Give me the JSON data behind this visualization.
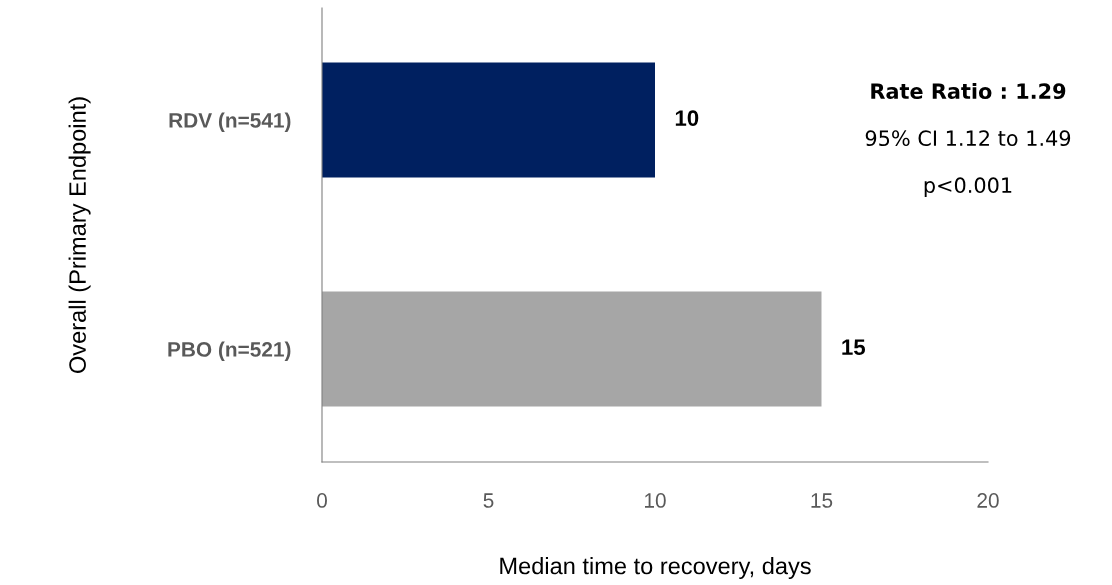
{
  "chart_data": {
    "type": "bar",
    "orientation": "horizontal",
    "categories": [
      "RDV (n=541)",
      "PBO (n=521)"
    ],
    "values": [
      10,
      15
    ],
    "colors": [
      "#002060",
      "#a6a6a6"
    ],
    "xlabel": "Median time to recovery, days",
    "ylabel": "Overall (Primary Endpoint)",
    "xlim": [
      0,
      20
    ],
    "xticks": [
      0,
      5,
      10,
      15,
      20
    ],
    "data_labels": true,
    "grid": false,
    "annotations": [
      "Rate Ratio : 1.29",
      "95% CI 1.12 to 1.49",
      "p<0.001"
    ]
  }
}
